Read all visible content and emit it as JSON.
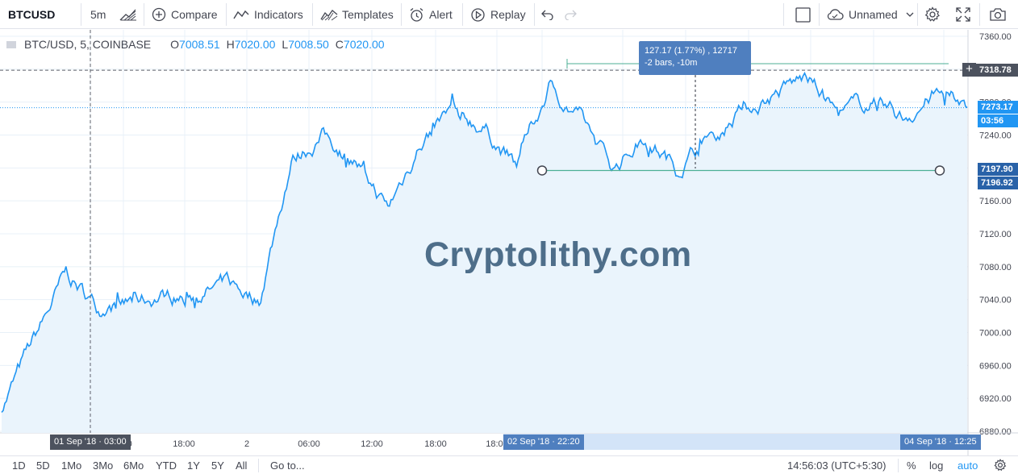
{
  "toolbar": {
    "symbol": "BTCUSD",
    "interval": "5m",
    "compare_label": "Compare",
    "indicators_label": "Indicators",
    "templates_label": "Templates",
    "alert_label": "Alert",
    "replay_label": "Replay",
    "layout_name": "Unnamed",
    "icons": [
      "bar-style-icon",
      "plus-circle-icon",
      "indicators-icon",
      "templates-icon",
      "alarm-clock-icon",
      "replay-icon",
      "undo-icon",
      "redo-icon",
      "square-icon",
      "cloud-icon",
      "chevron-down-icon",
      "gear-icon",
      "fullscreen-icon",
      "camera-icon"
    ]
  },
  "legend": {
    "series": "BTC/USD, 5, COINBASE",
    "o_key": "O",
    "o_val": "7008.51",
    "h_key": "H",
    "h_val": "7020.00",
    "l_key": "L",
    "l_val": "7008.50",
    "c_key": "C",
    "c_val": "7020.00"
  },
  "watermark": "Cryptolithy.com",
  "measure_tooltip": {
    "line1": "127.17 (1.77%) , 12717",
    "line2": "-2 bars, -10m"
  },
  "price_labels": {
    "crosshair": "7318.78",
    "last": "7273.17",
    "countdown": "03:56",
    "low_a": "7197.90",
    "low_b": "7196.92"
  },
  "time_labels": {
    "crosshair": "01 Sep '18 · 03:00",
    "range_start": "02 Sep '18 · 22:20",
    "range_end": "04 Sep '18 · 12:25"
  },
  "bottom": {
    "ranges": [
      "1D",
      "5D",
      "1Mo",
      "3Mo",
      "6Mo",
      "YTD",
      "1Y",
      "5Y",
      "All"
    ],
    "goto": "Go to...",
    "clock": "14:56:03 (UTC+5:30)",
    "percent": "%",
    "log": "log",
    "auto": "auto"
  },
  "colors": {
    "line": "#2196f3",
    "area": "#eaf4fc",
    "grid": "#e8f0f8",
    "measure": "#4caf95",
    "accent": "#2196f3"
  },
  "chart_data": {
    "type": "area",
    "title": "BTC/USD, 5, COINBASE",
    "ylim": [
      6880,
      7360
    ],
    "y_ticks": [
      6880,
      6920,
      6960,
      7000,
      7040,
      7080,
      7120,
      7160,
      7200,
      7240,
      7280,
      7320,
      7360
    ],
    "y_tick_labels": [
      "6880.00",
      "6920.00",
      "6960.00",
      "7000.00",
      "7040.00",
      "7080.00",
      "7120.00",
      "7160.00",
      "7200.00",
      "7240.00",
      "7280.00",
      "7320.00",
      "7360.00"
    ],
    "x_tick_labels": [
      "01 Sep '18 · 03:00",
      "12:00",
      "18:00",
      "2",
      "06:00",
      "12:00",
      "18:00",
      "02 Sep '18 · 22:20",
      "06:00",
      "12:00",
      "18:00",
      "4",
      "06:00",
      "04 Sep '18 · 12:25"
    ],
    "x": [
      "31 Aug 21:00",
      "01 Sep 00:00",
      "01 Sep 03:00",
      "01 Sep 06:00",
      "01 Sep 09:00",
      "01 Sep 12:00",
      "01 Sep 15:00",
      "01 Sep 18:00",
      "01 Sep 21:00",
      "02 Sep 00:00",
      "02 Sep 03:00",
      "02 Sep 06:00",
      "02 Sep 09:00",
      "02 Sep 12:00",
      "02 Sep 15:00",
      "02 Sep 18:00",
      "02 Sep 21:00",
      "03 Sep 00:00",
      "03 Sep 03:00",
      "03 Sep 06:00",
      "03 Sep 09:00",
      "03 Sep 12:00",
      "03 Sep 15:00",
      "03 Sep 18:00",
      "03 Sep 21:00",
      "04 Sep 00:00",
      "04 Sep 03:00",
      "04 Sep 06:00",
      "04 Sep 09:00",
      "04 Sep 12:00",
      "04 Sep 12:25"
    ],
    "series": [
      {
        "name": "BTC/USD",
        "values": [
          6910,
          6990,
          7070,
          7030,
          7035,
          7045,
          7045,
          7060,
          7040,
          7210,
          7240,
          7210,
          7150,
          7230,
          7270,
          7250,
          7200,
          7300,
          7260,
          7200,
          7240,
          7200,
          7240,
          7270,
          7290,
          7310,
          7265,
          7280,
          7260,
          7290,
          7273.17
        ]
      }
    ],
    "measure_range": {
      "start": "02 Sep '18 · 22:20",
      "end": "04 Sep '18 · 12:25",
      "low": 7196.92,
      "high": 7318.78
    },
    "last_price": 7273.17
  }
}
